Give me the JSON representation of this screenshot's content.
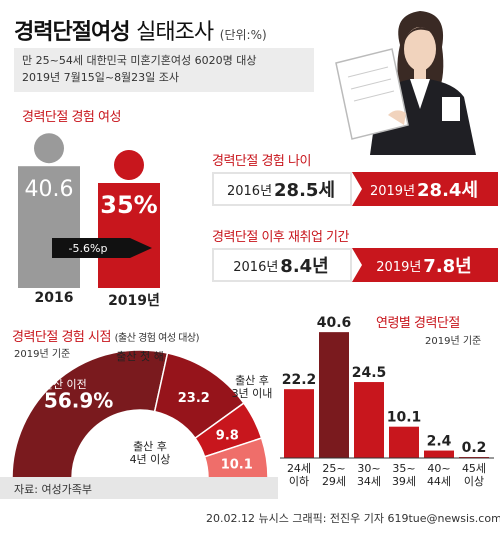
{
  "header": {
    "title_bold": "경력단절여성",
    "title_thin": "실태조사",
    "unit": "(단위:%)",
    "subtitle_line1": "만 25~54세 대한민국 미혼기혼여성 6020명 대상",
    "subtitle_line2": "2019년 7월15일~8월23일 조사"
  },
  "colors": {
    "accent": "#c8161d",
    "dark_red": "#7a1a1e",
    "gray": "#9a9a9a"
  },
  "chart_data": [
    {
      "type": "bar",
      "title": "경력단절 경험 여성",
      "categories": [
        "2016",
        "2019년"
      ],
      "values": [
        40.6,
        35
      ],
      "value_labels": [
        "40.6",
        "35%"
      ],
      "annotation": "-5.6%p"
    },
    {
      "type": "table",
      "title": "경력단절 경험 나이",
      "rows": [
        {
          "year": "2016년",
          "value": "28.5세"
        },
        {
          "year": "2019년",
          "value": "28.4세"
        }
      ]
    },
    {
      "type": "table",
      "title": "경력단절 이후 재취업 기간",
      "rows": [
        {
          "year": "2016년",
          "value": "8.4년"
        },
        {
          "year": "2019년",
          "value": "7.8년"
        }
      ]
    },
    {
      "type": "pie",
      "title": "경력단절 경험 시점",
      "subtitle": "(출산 경험 여성 대상)",
      "note": "2019년 기준",
      "slices": [
        {
          "label": "첫 출산 이전",
          "value": 56.9,
          "value_label": "56.9%"
        },
        {
          "label": "출산 첫 해",
          "value": 23.2,
          "value_label": "23.2"
        },
        {
          "label": "출산 후 3년 이내",
          "value": 9.8,
          "value_label": "9.8"
        },
        {
          "label": "출산 후 4년 이상",
          "value": 10.1,
          "value_label": "10.1"
        }
      ]
    },
    {
      "type": "bar",
      "title": "연령별 경력단절",
      "note": "2019년 기준",
      "categories": [
        "24세 이하",
        "25~ 29세",
        "30~ 34세",
        "35~ 39세",
        "40~ 44세",
        "45세 이상"
      ],
      "values": [
        22.2,
        40.6,
        24.5,
        10.1,
        2.4,
        0.2
      ],
      "value_labels": [
        "22.2",
        "40.6",
        "24.5",
        "10.1",
        "2.4",
        "0.2"
      ],
      "highlight_index": 1
    }
  ],
  "footer": {
    "source": "자료: 여성가족부",
    "credit": "20.02.12  뉴시스 그래픽: 전진우 기자  619tue@newsis.com"
  }
}
